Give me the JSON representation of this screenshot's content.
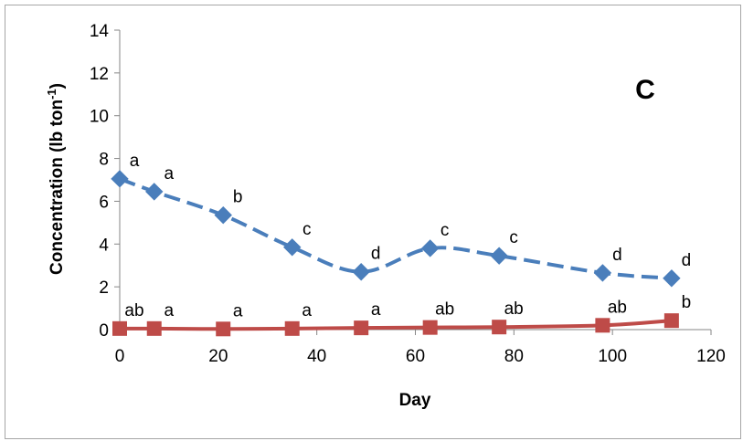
{
  "chart_data": {
    "type": "line",
    "title": "",
    "panel_label": "C",
    "xlabel": "Day",
    "ylabel_main": "Concentration (lb ton",
    "ylabel_sup": "-1",
    "ylabel_tail": ")",
    "xlim": [
      0,
      120
    ],
    "ylim": [
      0,
      14
    ],
    "xticks": [
      0,
      20,
      40,
      60,
      80,
      100,
      120
    ],
    "yticks": [
      0,
      2,
      4,
      6,
      8,
      10,
      12,
      14
    ],
    "grid": false,
    "legend": "none",
    "x": [
      0,
      7,
      21,
      35,
      49,
      63,
      77,
      98,
      112
    ],
    "series": [
      {
        "values": [
          7.05,
          6.45,
          5.35,
          3.85,
          2.7,
          3.8,
          3.45,
          2.65,
          2.4
        ],
        "labels": [
          "a",
          "a",
          "b",
          "c",
          "d",
          "c",
          "c",
          "d",
          "d"
        ],
        "color": "#4a7ebb",
        "marker": "diamond",
        "line_style": "dashed"
      },
      {
        "values": [
          0.05,
          0.05,
          0.03,
          0.05,
          0.08,
          0.1,
          0.12,
          0.2,
          0.42
        ],
        "labels": [
          "ab",
          "a",
          "a",
          "a",
          "a",
          "ab",
          "ab",
          "ab",
          "b"
        ],
        "color": "#be4b48",
        "marker": "square",
        "line_style": "solid"
      }
    ]
  }
}
